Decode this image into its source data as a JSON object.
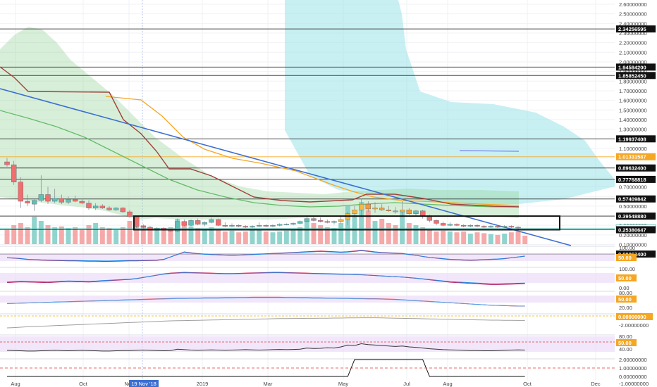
{
  "chart_data": {
    "type": "candlestick",
    "title": "",
    "xlabel": "",
    "ylabel": "",
    "legend": "none",
    "grid": true,
    "colors": {
      "up": "#5fbfb5",
      "down": "#ef6f6f",
      "vol_up": "#7ccdc4",
      "vol_down": "#f59a9a",
      "cloud": "#9ae3ea",
      "ma_orange": "#f5a623",
      "ma_brown": "#a0403a",
      "ma_green": "#66bb6a",
      "trend_blue": "#3d6fd1",
      "rsi_band": "#e7d3f5"
    },
    "x_ticks": [
      "Aug",
      "Oct",
      "Nov",
      "2019",
      "Mar",
      "May",
      "Jul",
      "Aug",
      "Oct",
      "Dec"
    ],
    "x_marker": "19 Nov '18",
    "y_ticks": [
      "2.60000000",
      "2.50000000",
      "2.40000000",
      "2.30000000",
      "2.20000000",
      "2.10000000",
      "2.00000000",
      "1.90000000",
      "1.80000000",
      "1.70000000",
      "1.60000000",
      "1.50000000",
      "1.40000000",
      "1.30000000",
      "1.20000000",
      "1.10000000",
      "1.00000000",
      "0.90000000",
      "0.80000000",
      "0.70000000",
      "0.60000000",
      "0.50000000",
      "0.40000000",
      "0.30000000",
      "0.20000000",
      "0.10000000"
    ],
    "y_ticks_display": [
      "2.60000000",
      "2.50000000",
      "2.40000000",
      "2.30000000",
      "2.20000000",
      "2.10000000",
      "2.00000000",
      "1.90000000",
      "1.80000000",
      "1.70000000",
      "1.60000000",
      "1.50000000",
      "1.40000000",
      "1.30000000",
      "1.10000000",
      "1.00000000",
      "0.70000000",
      "0.50000000",
      "0.40000000",
      "0.30000000",
      "0.20000000",
      "0.10000000"
    ],
    "level_labels": [
      {
        "value": 2.34256595,
        "label": "2.34256595",
        "style": "dark"
      },
      {
        "value": 1.945842,
        "label": "1.94584200",
        "style": "dark"
      },
      {
        "value": 1.8585245,
        "label": "1.85852450",
        "style": "dark"
      },
      {
        "value": 1.19937408,
        "label": "1.19937408",
        "style": "dark"
      },
      {
        "value": 1.01331587,
        "label": "1.01331587",
        "style": "orange"
      },
      {
        "value": 0.896324,
        "label": "0.89632400",
        "style": "dark"
      },
      {
        "value": 0.77768818,
        "label": "0.77768818",
        "style": "dark"
      },
      {
        "value": 0.57409842,
        "label": "0.57409842",
        "style": "dark"
      },
      {
        "value": 0.3954888,
        "label": "0.39548880",
        "style": "dark"
      },
      {
        "value": 0.26945144,
        "label": "0.26945144",
        "style": "teal"
      },
      {
        "value": 0.25380647,
        "label": "0.25380647",
        "style": "dark"
      },
      {
        "value": 0.000634,
        "label": "0.00063400",
        "style": "dark"
      }
    ],
    "indicator_labels": {
      "p1_top": "100.00",
      "p1_mid": "50.00",
      "p2_top": "100.00",
      "p2_mid": "50.00",
      "p2_bot": "0.00",
      "p3_top": "80.00",
      "p3_mid": "50.00",
      "p3_bot": "20.00",
      "p4_mid": "0.00000000",
      "p4_bot": "-2.00000000",
      "p5_top": "80.00",
      "p5_mid": "50.00",
      "p5_bot": "40.00",
      "p6_top": "2.00000000",
      "p6_mid": "1.00000000",
      "p6_zero": "0.00000000",
      "p6_bot": "-1.00000000"
    },
    "series": [
      {
        "name": "",
        "type": "ohlc",
        "values": [
          {
            "o": 0.96,
            "h": 1.0,
            "l": 0.91,
            "c": 0.93
          },
          {
            "o": 0.93,
            "h": 0.97,
            "l": 0.72,
            "c": 0.75
          },
          {
            "o": 0.75,
            "h": 0.8,
            "l": 0.48,
            "c": 0.55
          },
          {
            "o": 0.55,
            "h": 0.62,
            "l": 0.5,
            "c": 0.53
          },
          {
            "o": 0.52,
            "h": 0.58,
            "l": 0.45,
            "c": 0.56
          },
          {
            "o": 0.56,
            "h": 0.82,
            "l": 0.54,
            "c": 0.62
          },
          {
            "o": 0.62,
            "h": 0.7,
            "l": 0.52,
            "c": 0.55
          },
          {
            "o": 0.55,
            "h": 0.68,
            "l": 0.53,
            "c": 0.58
          },
          {
            "o": 0.58,
            "h": 0.62,
            "l": 0.52,
            "c": 0.54
          },
          {
            "o": 0.54,
            "h": 0.6,
            "l": 0.52,
            "c": 0.57
          },
          {
            "o": 0.57,
            "h": 0.61,
            "l": 0.54,
            "c": 0.55
          },
          {
            "o": 0.55,
            "h": 0.58,
            "l": 0.52,
            "c": 0.53
          },
          {
            "o": 0.53,
            "h": 0.56,
            "l": 0.46,
            "c": 0.48
          },
          {
            "o": 0.48,
            "h": 0.53,
            "l": 0.46,
            "c": 0.5
          },
          {
            "o": 0.5,
            "h": 0.52,
            "l": 0.47,
            "c": 0.48
          },
          {
            "o": 0.48,
            "h": 0.5,
            "l": 0.45,
            "c": 0.46
          },
          {
            "o": 0.46,
            "h": 0.49,
            "l": 0.45,
            "c": 0.48
          },
          {
            "o": 0.48,
            "h": 0.49,
            "l": 0.43,
            "c": 0.44
          },
          {
            "o": 0.44,
            "h": 0.46,
            "l": 0.38,
            "c": 0.39
          },
          {
            "o": 0.39,
            "h": 0.4,
            "l": 0.27,
            "c": 0.29
          },
          {
            "o": 0.29,
            "h": 0.31,
            "l": 0.26,
            "c": 0.28
          },
          {
            "o": 0.28,
            "h": 0.29,
            "l": 0.25,
            "c": 0.26
          },
          {
            "o": 0.26,
            "h": 0.28,
            "l": 0.24,
            "c": 0.27
          },
          {
            "o": 0.27,
            "h": 0.28,
            "l": 0.24,
            "c": 0.25
          },
          {
            "o": 0.25,
            "h": 0.26,
            "l": 0.23,
            "c": 0.24
          },
          {
            "o": 0.24,
            "h": 0.37,
            "l": 0.23,
            "c": 0.34
          },
          {
            "o": 0.34,
            "h": 0.36,
            "l": 0.29,
            "c": 0.3
          },
          {
            "o": 0.3,
            "h": 0.36,
            "l": 0.29,
            "c": 0.35
          },
          {
            "o": 0.35,
            "h": 0.37,
            "l": 0.3,
            "c": 0.31
          },
          {
            "o": 0.31,
            "h": 0.34,
            "l": 0.29,
            "c": 0.33
          },
          {
            "o": 0.33,
            "h": 0.38,
            "l": 0.32,
            "c": 0.36
          },
          {
            "o": 0.36,
            "h": 0.37,
            "l": 0.29,
            "c": 0.3
          },
          {
            "o": 0.3,
            "h": 0.33,
            "l": 0.28,
            "c": 0.29
          },
          {
            "o": 0.29,
            "h": 0.32,
            "l": 0.28,
            "c": 0.3
          },
          {
            "o": 0.3,
            "h": 0.31,
            "l": 0.28,
            "c": 0.29
          },
          {
            "o": 0.29,
            "h": 0.3,
            "l": 0.27,
            "c": 0.28
          },
          {
            "o": 0.28,
            "h": 0.3,
            "l": 0.27,
            "c": 0.29
          },
          {
            "o": 0.29,
            "h": 0.33,
            "l": 0.28,
            "c": 0.3
          },
          {
            "o": 0.3,
            "h": 0.31,
            "l": 0.28,
            "c": 0.29
          },
          {
            "o": 0.29,
            "h": 0.31,
            "l": 0.28,
            "c": 0.3
          },
          {
            "o": 0.3,
            "h": 0.32,
            "l": 0.29,
            "c": 0.31
          },
          {
            "o": 0.31,
            "h": 0.32,
            "l": 0.3,
            "c": 0.31
          },
          {
            "o": 0.31,
            "h": 0.33,
            "l": 0.3,
            "c": 0.32
          },
          {
            "o": 0.32,
            "h": 0.35,
            "l": 0.31,
            "c": 0.34
          },
          {
            "o": 0.34,
            "h": 0.4,
            "l": 0.33,
            "c": 0.37
          },
          {
            "o": 0.37,
            "h": 0.4,
            "l": 0.34,
            "c": 0.35
          },
          {
            "o": 0.35,
            "h": 0.38,
            "l": 0.33,
            "c": 0.34
          },
          {
            "o": 0.34,
            "h": 0.36,
            "l": 0.32,
            "c": 0.33
          },
          {
            "o": 0.33,
            "h": 0.35,
            "l": 0.31,
            "c": 0.34
          },
          {
            "o": 0.34,
            "h": 0.4,
            "l": 0.32,
            "c": 0.36
          },
          {
            "o": 0.36,
            "h": 0.44,
            "l": 0.3,
            "c": 0.42
          },
          {
            "o": 0.42,
            "h": 0.5,
            "l": 0.38,
            "c": 0.46
          },
          {
            "o": 0.46,
            "h": 0.58,
            "l": 0.4,
            "c": 0.52
          },
          {
            "o": 0.52,
            "h": 0.55,
            "l": 0.44,
            "c": 0.47
          },
          {
            "o": 0.47,
            "h": 0.54,
            "l": 0.43,
            "c": 0.48
          },
          {
            "o": 0.48,
            "h": 0.52,
            "l": 0.45,
            "c": 0.46
          },
          {
            "o": 0.46,
            "h": 0.5,
            "l": 0.44,
            "c": 0.45
          },
          {
            "o": 0.45,
            "h": 0.49,
            "l": 0.42,
            "c": 0.44
          },
          {
            "o": 0.44,
            "h": 0.55,
            "l": 0.4,
            "c": 0.46
          },
          {
            "o": 0.46,
            "h": 0.48,
            "l": 0.41,
            "c": 0.42
          },
          {
            "o": 0.42,
            "h": 0.46,
            "l": 0.4,
            "c": 0.45
          },
          {
            "o": 0.45,
            "h": 0.46,
            "l": 0.37,
            "c": 0.4
          },
          {
            "o": 0.4,
            "h": 0.41,
            "l": 0.33,
            "c": 0.35
          },
          {
            "o": 0.35,
            "h": 0.36,
            "l": 0.3,
            "c": 0.32
          },
          {
            "o": 0.32,
            "h": 0.34,
            "l": 0.29,
            "c": 0.3
          },
          {
            "o": 0.3,
            "h": 0.33,
            "l": 0.29,
            "c": 0.31
          },
          {
            "o": 0.31,
            "h": 0.32,
            "l": 0.29,
            "c": 0.3
          },
          {
            "o": 0.3,
            "h": 0.31,
            "l": 0.28,
            "c": 0.29
          },
          {
            "o": 0.29,
            "h": 0.31,
            "l": 0.28,
            "c": 0.3
          },
          {
            "o": 0.3,
            "h": 0.31,
            "l": 0.28,
            "c": 0.29
          },
          {
            "o": 0.29,
            "h": 0.3,
            "l": 0.27,
            "c": 0.28
          },
          {
            "o": 0.28,
            "h": 0.3,
            "l": 0.27,
            "c": 0.29
          },
          {
            "o": 0.29,
            "h": 0.3,
            "l": 0.27,
            "c": 0.28
          },
          {
            "o": 0.28,
            "h": 0.3,
            "l": 0.27,
            "c": 0.29
          },
          {
            "o": 0.29,
            "h": 0.3,
            "l": 0.27,
            "c": 0.28
          },
          {
            "o": 0.28,
            "h": 0.29,
            "l": 0.26,
            "c": 0.27
          }
        ]
      }
    ],
    "volume": [
      0.35,
      0.45,
      0.5,
      0.4,
      0.65,
      0.55,
      0.45,
      0.4,
      0.42,
      0.38,
      0.4,
      0.35,
      0.45,
      0.5,
      0.4,
      0.38,
      0.35,
      0.4,
      0.55,
      0.6,
      0.45,
      0.4,
      0.35,
      0.38,
      0.4,
      0.6,
      0.45,
      0.42,
      0.38,
      0.36,
      0.4,
      0.35,
      0.3,
      0.32,
      0.28,
      0.3,
      0.33,
      0.35,
      0.3,
      0.28,
      0.3,
      0.32,
      0.35,
      0.4,
      0.55,
      0.5,
      0.45,
      0.4,
      0.38,
      0.5,
      0.9,
      0.7,
      1.0,
      0.8,
      0.55,
      0.6,
      0.5,
      0.45,
      0.8,
      0.5,
      0.45,
      0.4,
      0.35,
      0.3,
      0.32,
      0.3,
      0.28,
      0.3,
      0.25,
      0.28,
      0.26,
      0.24,
      0.22,
      0.25,
      0.28,
      0.3,
      0.2
    ],
    "indicators": {
      "stoch": [
        40,
        38,
        35,
        30,
        28,
        26,
        25,
        24,
        23,
        22,
        22,
        21,
        20,
        20,
        19,
        19,
        20,
        21,
        22,
        22,
        23,
        24,
        25,
        30,
        45,
        60,
        75,
        70,
        65,
        62,
        60,
        58,
        56,
        55,
        56,
        58,
        60,
        62,
        64,
        66,
        68,
        70,
        72,
        74,
        76,
        78,
        80,
        78,
        76,
        74,
        76,
        80,
        85,
        80,
        75,
        72,
        70,
        68,
        66,
        60,
        55,
        48,
        42,
        38,
        34,
        30,
        28,
        26,
        25,
        26,
        28,
        30,
        32,
        35,
        40,
        45,
        50
      ],
      "osc2": [
        30,
        32,
        34,
        33,
        32,
        31,
        30,
        32,
        34,
        36,
        35,
        34,
        33,
        35,
        38,
        40,
        42,
        44,
        46,
        50,
        56,
        62,
        68,
        74,
        78,
        80,
        82,
        81,
        80,
        79,
        78,
        77,
        76,
        76,
        77,
        78,
        79,
        80,
        81,
        82,
        82,
        81,
        80,
        79,
        78,
        77,
        76,
        75,
        74,
        73,
        72,
        71,
        70,
        68,
        66,
        64,
        62,
        60,
        58,
        55,
        52,
        48,
        44,
        40,
        36,
        32,
        30,
        28,
        26,
        24,
        22,
        20,
        20,
        21,
        22,
        23,
        24
      ],
      "rsi": [
        42,
        43,
        44,
        45,
        46,
        47,
        48,
        49,
        50,
        51,
        52,
        53,
        54,
        55,
        56,
        57,
        58,
        59,
        60,
        61,
        62,
        63,
        64,
        65,
        66,
        67,
        67,
        68,
        68,
        69,
        69,
        69,
        70,
        70,
        71,
        71,
        72,
        72,
        72,
        72,
        72,
        71,
        71,
        70,
        70,
        69,
        69,
        68,
        68,
        67,
        67,
        66,
        66,
        65,
        65,
        64,
        63,
        62,
        60,
        58,
        56,
        54,
        52,
        50,
        48,
        46,
        44,
        42,
        40,
        38,
        36,
        34,
        33,
        32,
        31,
        30,
        30
      ],
      "macd": [
        -0.6,
        -0.58,
        -0.55,
        -0.52,
        -0.5,
        -0.48,
        -0.46,
        -0.44,
        -0.42,
        -0.4,
        -0.38,
        -0.36,
        -0.34,
        -0.32,
        -0.3,
        -0.28,
        -0.26,
        -0.24,
        -0.22,
        -0.2,
        -0.18,
        -0.16,
        -0.14,
        -0.12,
        -0.1,
        -0.09,
        -0.08,
        -0.07,
        -0.06,
        -0.05,
        -0.04,
        -0.03,
        -0.02,
        -0.01,
        0.0,
        0.01,
        0.02,
        0.03,
        0.04,
        0.05,
        0.06,
        0.06,
        0.07,
        0.07,
        0.08,
        0.08,
        0.09,
        0.09,
        0.1,
        0.1,
        0.11,
        0.11,
        0.12,
        0.12,
        0.12,
        0.11,
        0.1,
        0.09,
        0.08,
        0.07,
        0.06,
        0.05,
        0.04,
        0.03,
        0.02,
        0.01,
        0.0,
        -0.01,
        -0.02,
        -0.03,
        -0.04,
        -0.05,
        -0.05,
        -0.06,
        -0.06,
        -0.07,
        -0.07
      ],
      "rsi2": [
        45,
        44,
        43,
        42,
        42,
        43,
        44,
        45,
        44,
        43,
        44,
        45,
        44,
        43,
        42,
        42,
        43,
        44,
        44,
        45,
        46,
        45,
        44,
        43,
        44,
        50,
        48,
        46,
        45,
        46,
        47,
        46,
        45,
        46,
        47,
        48,
        47,
        46,
        47,
        48,
        49,
        48,
        49,
        50,
        55,
        53,
        54,
        56,
        55,
        60,
        68,
        66,
        74,
        70,
        68,
        66,
        64,
        62,
        64,
        60,
        58,
        55,
        52,
        50,
        48,
        47,
        46,
        45,
        44,
        44,
        43,
        43,
        44,
        45,
        46,
        47,
        46
      ],
      "signal": [
        0,
        0,
        0,
        0,
        0,
        0,
        0,
        0,
        0,
        0,
        0,
        0,
        0,
        0,
        0,
        0,
        0,
        0,
        0,
        0,
        0,
        0,
        0,
        0,
        0,
        0,
        0,
        0,
        0,
        0,
        0,
        0,
        0,
        0,
        0,
        0,
        0,
        0,
        0,
        0,
        0,
        0,
        0,
        0,
        0,
        0,
        0,
        0,
        0,
        0,
        0,
        1,
        1,
        1,
        1,
        1,
        1,
        1,
        1,
        1,
        1,
        1,
        0,
        0,
        0,
        0,
        0,
        0,
        0,
        0,
        0,
        0,
        0,
        0,
        0,
        0,
        0
      ]
    }
  }
}
